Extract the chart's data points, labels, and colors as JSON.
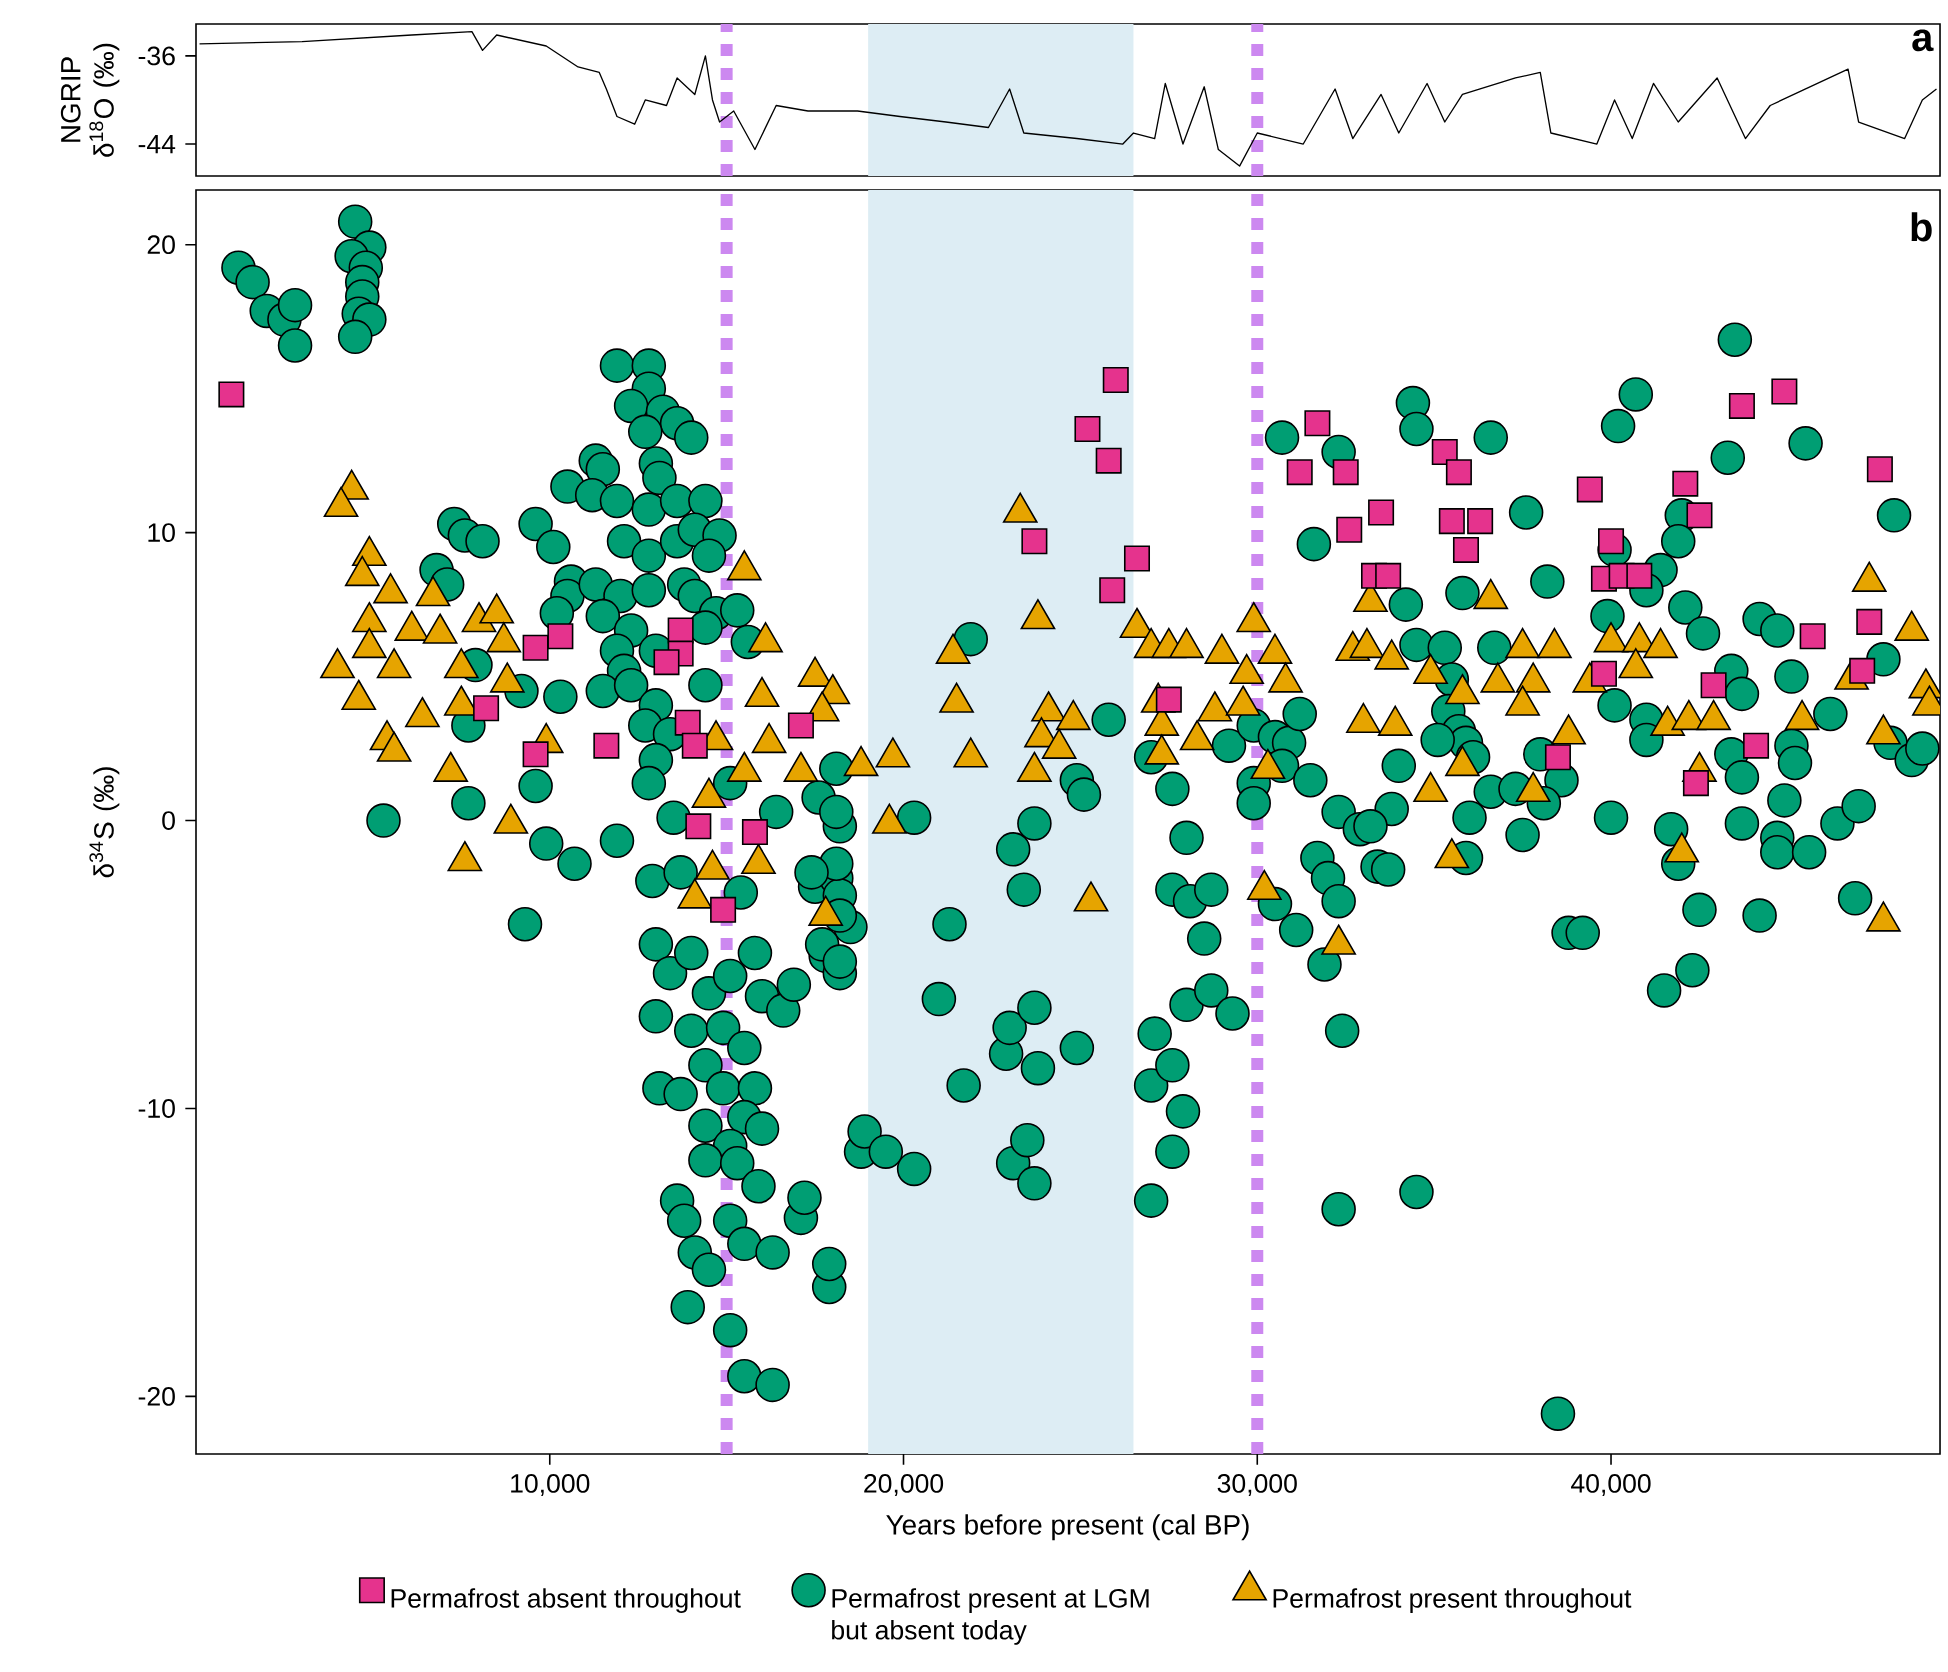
{
  "chart_data": [
    {
      "type": "line",
      "ylabel": "NGRIP δ$^{18}$O (‰)",
      "xlim": [
        0,
        49300
      ],
      "ylim": [
        -46.9,
        -33.1
      ],
      "yticks": [
        -36,
        -44
      ],
      "tick_labels": "y",
      "color": "#000000",
      "x": [
        100,
        3000,
        6100,
        7800,
        8100,
        8500,
        9900,
        10800,
        11400,
        11600,
        11900,
        12400,
        12700,
        13300,
        13600,
        14100,
        14400,
        14600,
        14800,
        15200,
        15800,
        16400,
        17300,
        18700,
        19900,
        21200,
        22400,
        23000,
        23400,
        24900,
        26200,
        26500,
        27100,
        27400,
        27900,
        28500,
        28900,
        29500,
        30000,
        31300,
        32200,
        32700,
        33500,
        34000,
        34800,
        35300,
        35800,
        37300,
        38000,
        38300,
        39600,
        40100,
        40600,
        41200,
        41900,
        43000,
        43800,
        44500,
        46700,
        47000,
        48300,
        48800,
        49200
      ],
      "values": [
        -34.9,
        -34.7,
        -34.1,
        -33.8,
        -35.5,
        -34.1,
        -35.1,
        -37.0,
        -37.5,
        -39.0,
        -41.5,
        -42.2,
        -40.0,
        -40.5,
        -38.0,
        -39.5,
        -36.0,
        -40.0,
        -42.0,
        -41.0,
        -44.5,
        -40.5,
        -41.0,
        -41.0,
        -41.5,
        -42.0,
        -42.5,
        -39.0,
        -43.0,
        -43.5,
        -44.0,
        -43.0,
        -43.5,
        -38.5,
        -44.0,
        -38.8,
        -44.5,
        -46.0,
        -43.0,
        -44.0,
        -39.0,
        -43.5,
        -39.5,
        -43.0,
        -38.5,
        -42.0,
        -39.5,
        -38.0,
        -37.5,
        -43.0,
        -44.0,
        -40.0,
        -43.5,
        -38.5,
        -42.0,
        -38.0,
        -43.5,
        -40.5,
        -37.2,
        -42.0,
        -43.5,
        -40.0,
        -39.0
      ],
      "bands": [
        {
          "axis": "x",
          "from": 19000,
          "to": 26500,
          "color": "#ddedf4"
        }
      ],
      "ref_lines": [
        {
          "axis": "x",
          "value": 15000,
          "color": "#cc88f0",
          "line_style": "dashed"
        },
        {
          "axis": "x",
          "value": 30000,
          "color": "#cc88f0",
          "line_style": "dashed"
        }
      ],
      "annotations": [
        "a"
      ]
    },
    {
      "type": "scatter",
      "xlabel": "Years before present (cal BP)",
      "ylabel": "δ$^{34}$S (‰)",
      "xlim": [
        0,
        49300
      ],
      "ylim": [
        -22,
        21.9
      ],
      "xticks": [
        {
          "value": 10000,
          "label": "10,000"
        },
        {
          "value": 20000,
          "label": "20,000"
        },
        {
          "value": 30000,
          "label": "30,000"
        },
        {
          "value": 40000,
          "label": "40,000"
        }
      ],
      "yticks": [
        -20,
        -10,
        0,
        10,
        20
      ],
      "legend": "bottom",
      "bands": [
        {
          "axis": "x",
          "from": 19000,
          "to": 26500,
          "color": "#ddedf4"
        }
      ],
      "ref_lines": [
        {
          "axis": "x",
          "value": 15000,
          "color": "#cc88f0",
          "line_style": "dashed"
        },
        {
          "axis": "x",
          "value": 30000,
          "color": "#cc88f0",
          "line_style": "dashed"
        }
      ],
      "annotations": [
        "b"
      ],
      "series": [
        {
          "name": "Permafrost absent throughout",
          "color": "#e5338d",
          "marker": "square",
          "x": [
            1000,
            9600,
            10300,
            8200,
            9600,
            13700,
            13700,
            13300,
            13900,
            14100,
            11600,
            14200,
            15800,
            14900,
            17100,
            26000,
            25200,
            25800,
            23700,
            26600,
            25900,
            27500,
            31700,
            31200,
            32500,
            32600,
            33300,
            35300,
            35700,
            33500,
            35500,
            36300,
            35900,
            33700,
            39400,
            40000,
            39800,
            40300,
            40800,
            42100,
            42500,
            43700,
            44900,
            47600,
            45700,
            47300,
            47100,
            39800,
            42900,
            44100,
            42400,
            38500
          ],
          "values": [
            14.8,
            6.0,
            6.4,
            3.9,
            2.3,
            6.6,
            5.8,
            5.5,
            3.4,
            2.6,
            2.6,
            -0.2,
            -0.4,
            -3.1,
            3.3,
            15.3,
            13.6,
            12.5,
            9.7,
            9.1,
            8.0,
            4.2,
            13.8,
            12.1,
            12.1,
            10.1,
            8.5,
            12.8,
            12.1,
            10.7,
            10.4,
            10.4,
            9.4,
            8.5,
            11.5,
            9.7,
            8.4,
            8.5,
            8.5,
            11.7,
            10.6,
            14.4,
            14.9,
            12.2,
            6.4,
            6.9,
            5.2,
            5.1,
            4.7,
            2.6,
            1.3,
            2.2
          ]
        },
        {
          "name": "Permafrost present at LGM but absent today",
          "color": "#009e73",
          "marker": "circle",
          "x": [
            1200,
            1600,
            2000,
            2500,
            2800,
            2800,
            4500,
            4900,
            4400,
            4800,
            4700,
            4700,
            4600,
            4900,
            4500,
            11900,
            12800,
            12800,
            12300,
            13200,
            13600,
            12700,
            14000,
            11300,
            11500,
            13000,
            13100,
            10500,
            11200,
            11900,
            12800,
            13600,
            14400,
            7300,
            7600,
            8100,
            9600,
            10100,
            12100,
            12800,
            13600,
            14100,
            14800,
            14500,
            6800,
            7100,
            10600,
            10500,
            11300,
            12000,
            12800,
            13800,
            14100,
            14700,
            15300,
            10200,
            11500,
            12300,
            11900,
            12100,
            13000,
            14400,
            14400,
            15600,
            7900,
            9200,
            10300,
            11500,
            12300,
            13000,
            12700,
            13400,
            13000,
            7700,
            9600,
            7700,
            5300,
            12800,
            13500,
            15100,
            16400,
            9900,
            10700,
            11900,
            9300,
            12900,
            13700,
            15400,
            13000,
            13400,
            14000,
            14500,
            15100,
            15800,
            16000,
            16600,
            16900,
            13000,
            14000,
            14900,
            15500,
            14400,
            13100,
            13700,
            14900,
            15800,
            14400,
            15500,
            16000,
            15100,
            14400,
            15300,
            15900,
            13600,
            13800,
            15100,
            15500,
            16300,
            14100,
            14500,
            17100,
            17900,
            13900,
            15100,
            15500,
            16300,
            18800,
            17500,
            18100,
            18200,
            18500,
            17800,
            18200,
            18200,
            18100,
            17600,
            18100,
            20300,
            18100,
            17400,
            18200,
            17700,
            18200,
            21300,
            21000,
            21700,
            18900,
            19500,
            20300,
            17900,
            17200,
            21900,
            23700,
            23100,
            23400,
            22900,
            23000,
            23700,
            23800,
            24900,
            23100,
            23500,
            23700,
            25800,
            24900,
            25100,
            27000,
            27600,
            28000,
            29200,
            27600,
            28100,
            28500,
            28700,
            27100,
            28000,
            28700,
            29300,
            27000,
            27600,
            27900,
            27600,
            27000,
            29900,
            30500,
            30900,
            30700,
            29900,
            29900,
            31500,
            31200,
            30700,
            32300,
            31600,
            30500,
            31100,
            31700,
            32000,
            32300,
            31900,
            32400,
            32300,
            32300,
            32900,
            33400,
            34400,
            34500,
            36600,
            37600,
            35800,
            34200,
            38200,
            34500,
            35300,
            36700,
            35500,
            35400,
            35700,
            35900,
            35100,
            34000,
            36100,
            38000,
            38600,
            36600,
            37300,
            38100,
            33800,
            33200,
            36000,
            37500,
            35900,
            33700,
            38800,
            39200,
            34500,
            38500,
            40700,
            40200,
            43500,
            43300,
            45500,
            48000,
            42000,
            41900,
            40100,
            41400,
            41000,
            42100,
            42600,
            44200,
            44700,
            39900,
            43400,
            43700,
            45100,
            40100,
            41000,
            41000,
            43400,
            43700,
            45100,
            45200,
            46200,
            47700,
            47900,
            48500,
            48800,
            44900,
            43700,
            44700,
            44700,
            45600,
            46400,
            47000,
            41700,
            41900,
            40000,
            42500,
            44200,
            46900,
            41500,
            42300
          ],
          "values": [
            19.2,
            18.7,
            17.7,
            17.4,
            17.9,
            16.5,
            20.8,
            19.9,
            19.6,
            19.2,
            18.7,
            18.2,
            17.6,
            17.4,
            16.8,
            15.8,
            15.8,
            15.0,
            14.4,
            14.2,
            13.8,
            13.5,
            13.3,
            12.5,
            12.2,
            12.4,
            11.9,
            11.6,
            11.3,
            11.1,
            10.8,
            11.1,
            11.1,
            10.3,
            9.9,
            9.7,
            10.3,
            9.5,
            9.7,
            9.2,
            9.7,
            10.1,
            9.9,
            9.2,
            8.7,
            8.2,
            8.3,
            7.8,
            8.2,
            7.8,
            8.0,
            8.2,
            7.8,
            7.2,
            7.3,
            7.2,
            7.1,
            6.6,
            5.9,
            5.2,
            5.9,
            6.7,
            4.7,
            6.2,
            5.4,
            4.5,
            4.3,
            4.5,
            4.7,
            4.0,
            3.3,
            3.0,
            2.1,
            3.3,
            1.2,
            0.6,
            0.0,
            1.3,
            0.1,
            1.3,
            0.3,
            -0.8,
            -1.5,
            -0.7,
            -3.6,
            -2.1,
            -1.8,
            -2.5,
            -4.3,
            -5.3,
            -4.6,
            -6.0,
            -5.4,
            -4.6,
            -6.1,
            -6.6,
            -5.7,
            -6.8,
            -7.3,
            -7.2,
            -7.9,
            -8.5,
            -9.3,
            -9.5,
            -9.3,
            -9.3,
            -10.6,
            -10.3,
            -10.7,
            -11.3,
            -11.8,
            -11.9,
            -12.7,
            -13.2,
            -13.9,
            -13.9,
            -14.7,
            -15.0,
            -15.0,
            -15.6,
            -13.8,
            -16.2,
            -16.9,
            -17.7,
            -19.3,
            -19.6,
            -11.5,
            -2.3,
            -2.0,
            -2.6,
            -3.7,
            -4.7,
            -5.3,
            -0.2,
            1.8,
            0.8,
            0.3,
            0.1,
            -1.5,
            -1.8,
            -3.3,
            -4.3,
            -4.9,
            -3.6,
            -6.2,
            -9.2,
            -10.8,
            -11.5,
            -12.1,
            -15.4,
            -13.1,
            6.3,
            -0.1,
            -1.0,
            -2.4,
            -8.1,
            -7.2,
            -6.5,
            -8.6,
            -7.9,
            -11.9,
            -11.1,
            -12.6,
            3.5,
            1.4,
            0.9,
            2.2,
            1.1,
            -0.6,
            2.6,
            -2.4,
            -2.8,
            -4.1,
            -2.4,
            -7.4,
            -6.4,
            -5.9,
            -6.7,
            -9.2,
            -8.5,
            -10.1,
            -11.5,
            -13.2,
            3.3,
            2.9,
            2.7,
            1.9,
            1.3,
            0.6,
            1.4,
            3.7,
            13.3,
            12.8,
            9.6,
            -2.9,
            -3.8,
            -1.3,
            -2.0,
            -2.8,
            -5.0,
            -7.3,
            -13.5,
            0.3,
            -0.3,
            -1.6,
            14.5,
            13.6,
            13.3,
            10.7,
            7.9,
            7.5,
            8.3,
            6.1,
            6.0,
            6.0,
            4.9,
            3.8,
            3.1,
            2.7,
            2.8,
            1.9,
            2.2,
            2.3,
            1.4,
            1.0,
            1.1,
            0.6,
            0.4,
            -0.2,
            0.1,
            -0.5,
            -1.3,
            -1.7,
            -3.9,
            -3.9,
            -12.9,
            -20.6,
            14.8,
            13.7,
            16.7,
            12.6,
            13.1,
            10.6,
            10.6,
            9.7,
            9.4,
            8.7,
            8.0,
            7.4,
            6.5,
            7.0,
            6.6,
            7.1,
            5.2,
            4.4,
            5.0,
            4.0,
            3.5,
            2.8,
            2.3,
            1.5,
            2.6,
            2.0,
            3.7,
            5.6,
            2.7,
            2.1,
            2.5,
            0.7,
            -0.1,
            -0.6,
            -1.1,
            -1.1,
            -0.1,
            0.5,
            -0.3,
            -1.5,
            0.1,
            -3.1,
            -3.3,
            -2.7,
            -5.9,
            -5.2
          ]
        },
        {
          "name": "Permafrost present throughout",
          "color": "#e6a400",
          "marker": "triangle",
          "x": [
            4400,
            4100,
            4900,
            4700,
            5500,
            6700,
            4900,
            4000,
            4900,
            5600,
            4600,
            6100,
            6900,
            8000,
            8500,
            8700,
            7500,
            8800,
            7500,
            6400,
            5400,
            5600,
            7200,
            8900,
            9900,
            15500,
            16100,
            16000,
            16200,
            15500,
            14500,
            14700,
            7600,
            14600,
            15900,
            14100,
            17800,
            17500,
            18000,
            17700,
            17100,
            18800,
            19700,
            19600,
            21400,
            21500,
            21900,
            23300,
            23800,
            24100,
            24800,
            23900,
            24400,
            23700,
            25300,
            26600,
            27000,
            27500,
            28000,
            29000,
            27200,
            27300,
            27300,
            28300,
            28800,
            29600,
            29900,
            29700,
            30500,
            30800,
            30300,
            30200,
            32300,
            32700,
            33200,
            33000,
            33100,
            33800,
            33900,
            34900,
            35800,
            36600,
            37500,
            38400,
            36800,
            37800,
            37500,
            35800,
            34900,
            35500,
            37800,
            38800,
            39400,
            40000,
            40800,
            41400,
            40700,
            41600,
            42200,
            42900,
            42500,
            42000,
            45400,
            46800,
            47300,
            48500,
            47700,
            48900,
            49000,
            47700
          ],
          "values": [
            11.5,
            10.9,
            9.2,
            8.5,
            7.9,
            7.8,
            6.9,
            5.3,
            6.0,
            5.3,
            4.2,
            6.6,
            6.5,
            6.9,
            7.2,
            6.2,
            5.3,
            4.8,
            4.0,
            3.6,
            2.8,
            2.4,
            1.7,
            -0.1,
            2.7,
            8.7,
            6.2,
            4.3,
            2.7,
            1.7,
            0.8,
            2.8,
            -1.4,
            -1.7,
            -1.5,
            -2.7,
            -3.3,
            5.0,
            4.4,
            3.8,
            1.7,
            1.9,
            2.2,
            -0.1,
            5.8,
            4.1,
            2.2,
            10.7,
            7.0,
            3.8,
            3.5,
            2.9,
            2.5,
            1.7,
            -2.8,
            6.7,
            6.0,
            6.0,
            6.0,
            5.8,
            4.1,
            3.3,
            2.3,
            2.8,
            3.8,
            4.0,
            6.9,
            5.1,
            5.8,
            4.8,
            1.8,
            -2.4,
            -4.3,
            5.9,
            7.6,
            3.4,
            6.0,
            5.6,
            3.3,
            5.1,
            4.4,
            7.7,
            6.0,
            6.0,
            4.8,
            4.8,
            4.0,
            1.9,
            1.0,
            -1.3,
            1.0,
            3.0,
            4.8,
            6.2,
            6.2,
            6.0,
            5.3,
            3.3,
            3.5,
            3.5,
            1.7,
            -1.1,
            3.5,
            4.9,
            8.3,
            6.6,
            3.0,
            4.6,
            4.0,
            -3.5
          ]
        }
      ]
    }
  ]
}
